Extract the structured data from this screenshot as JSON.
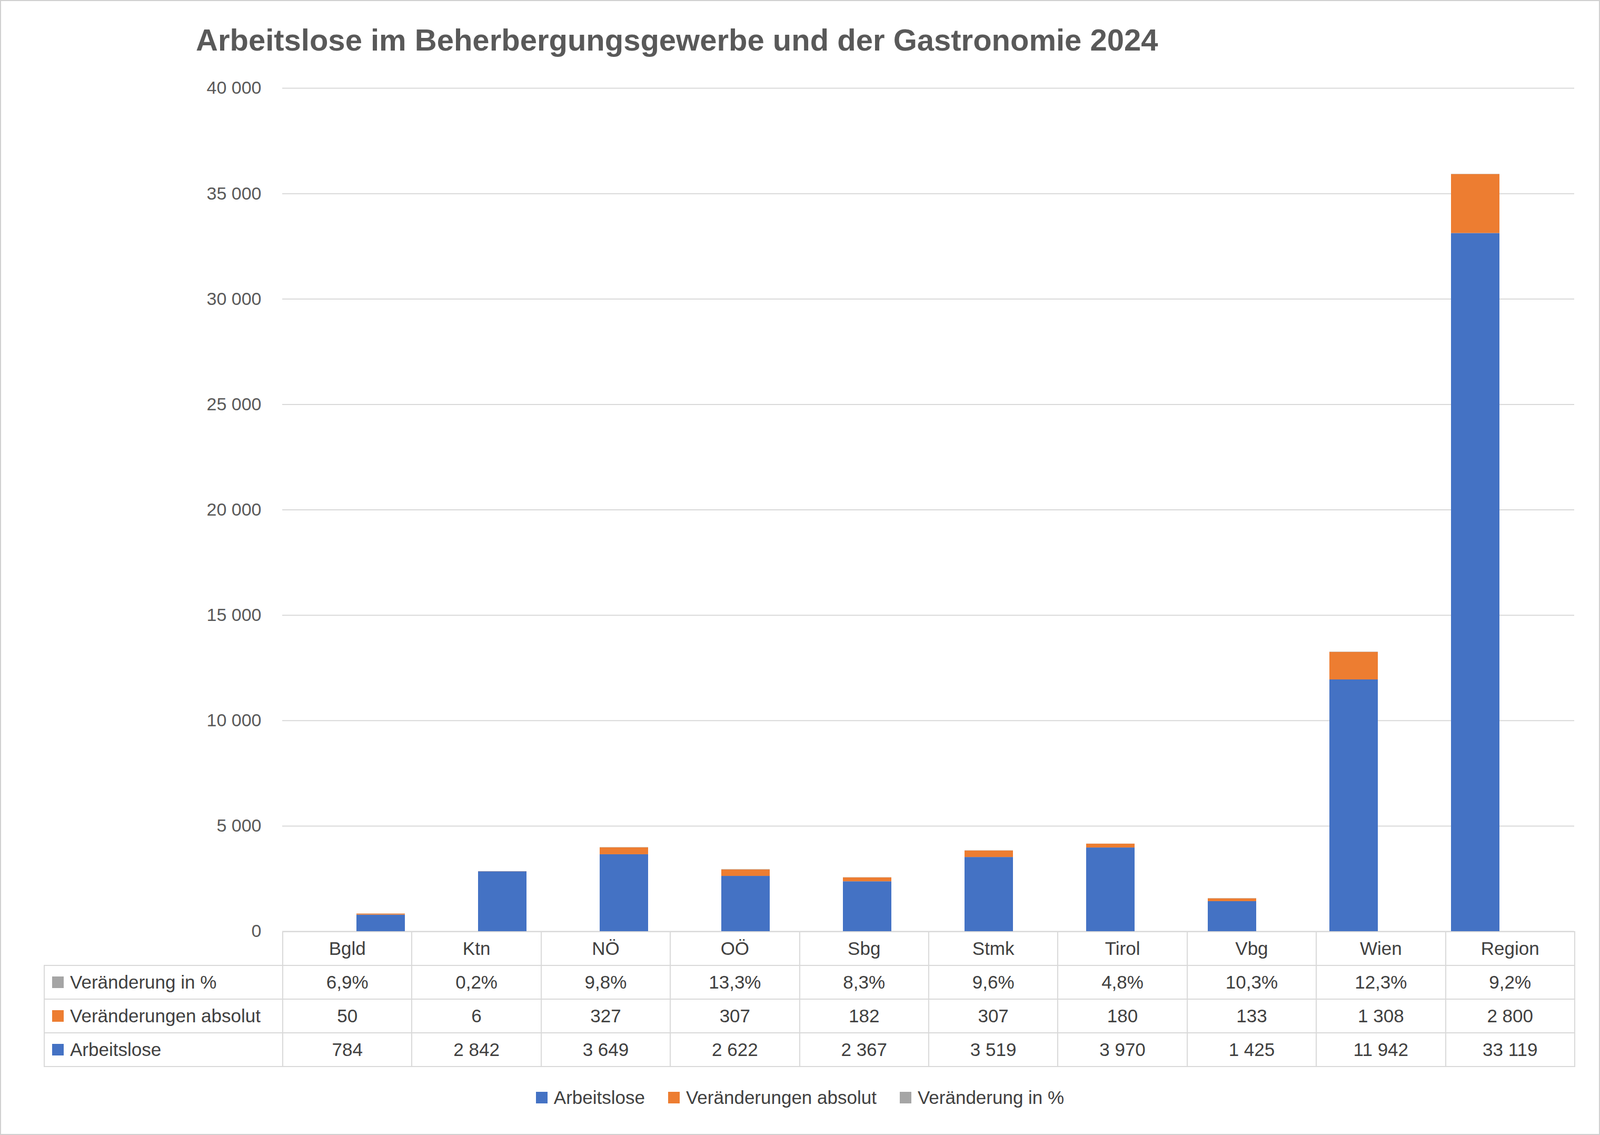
{
  "chart_data": {
    "type": "bar",
    "title": "Arbeitslose im Beherbergungsgewerbe und der Gastronomie 2024",
    "categories": [
      "Bgld",
      "Ktn",
      "NÖ",
      "OÖ",
      "Sbg",
      "Stmk",
      "Tirol",
      "Vbg",
      "Wien",
      "Region"
    ],
    "series": [
      {
        "name": "Arbeitslose",
        "color": "#4472c4",
        "values": [
          784,
          2842,
          3649,
          2622,
          2367,
          3519,
          3970,
          1425,
          11942,
          33119
        ],
        "value_labels": [
          "784",
          "2 842",
          "3 649",
          "2 622",
          "2 367",
          "3 519",
          "3 970",
          "1 425",
          "11 942",
          "33 119"
        ]
      },
      {
        "name": "Veränderungen absolut",
        "color": "#ed7d31",
        "values": [
          50,
          6,
          327,
          307,
          182,
          307,
          180,
          133,
          1308,
          2800
        ],
        "value_labels": [
          "50",
          "6",
          "327",
          "307",
          "182",
          "307",
          "180",
          "133",
          "1 308",
          "2 800"
        ]
      },
      {
        "name": "Veränderung in %",
        "color": "#a5a5a5",
        "values": [
          6.9,
          0.2,
          9.8,
          13.3,
          8.3,
          9.6,
          4.8,
          10.3,
          12.3,
          9.2
        ],
        "value_labels": [
          "6,9%",
          "0,2%",
          "9,8%",
          "13,3%",
          "8,3%",
          "9,6%",
          "4,8%",
          "10,3%",
          "12,3%",
          "9,2%"
        ]
      }
    ],
    "stacked": true,
    "ylim": [
      0,
      40000
    ],
    "yticks": [
      0,
      {
        "value": 5000,
        "label": "5 000"
      },
      {
        "value": 10000,
        "label": "10 000"
      },
      {
        "value": 15000,
        "label": "15 000"
      },
      {
        "value": 20000,
        "label": "20 000"
      },
      {
        "value": 25000,
        "label": "25 000"
      },
      {
        "value": 30000,
        "label": "30 000"
      },
      {
        "value": 35000,
        "label": "35 000"
      },
      {
        "value": 40000,
        "label": "40 000"
      }
    ],
    "grid": true,
    "legend": "bottom"
  }
}
